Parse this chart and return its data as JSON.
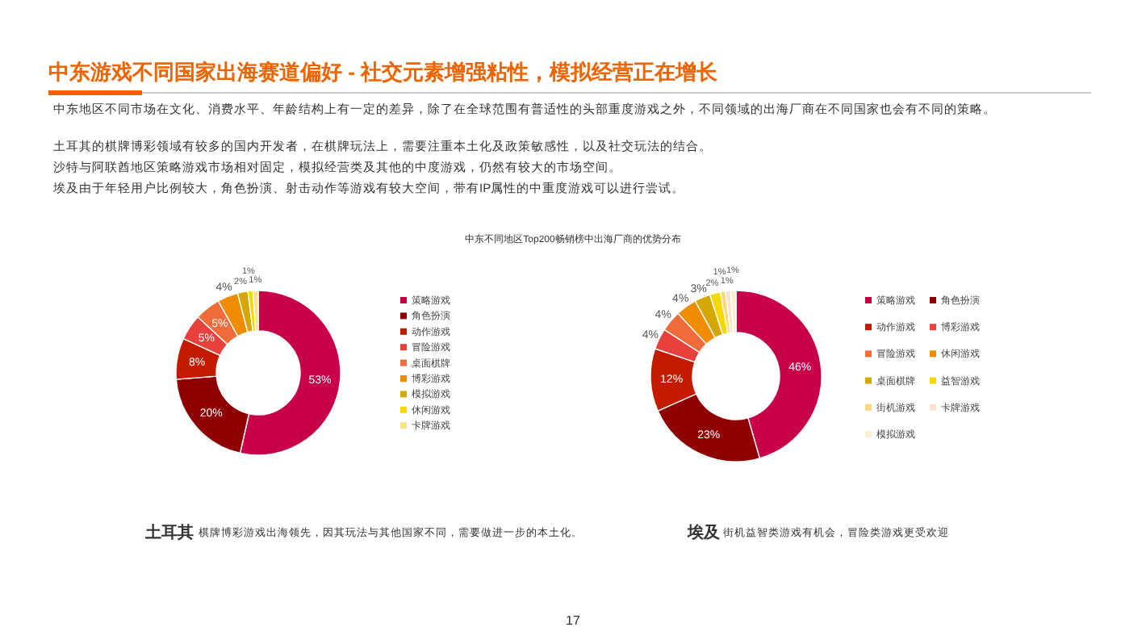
{
  "chart_data": [
    {
      "type": "donut",
      "title": "中东游戏不同国家出海赛道偏好 - 社交元素增强粘性，模拟经营正在增长",
      "subtitle": "中东不同地区Top200畅销榜中出海厂商的优势分布",
      "annotations": [
        "中东地区不同市场在文化、消费水平、年龄结构上有一定的差异，除了在全球范围有普适性的头部重度游戏之外，不同领域的出海厂商在不同国家也会有不同的策略。",
        "土耳其的棋牌博彩领域有较多的国内开发者，在棋牌玩法上，需要注重本土化及政策敏感性，以及社交玩法的结合。",
        "沙特与阿联酋地区策略游戏市场相对固定，模拟经营类及其他的中度游戏，仍然有较大的市场空间。",
        "埃及由于年轻用户比例较大，角色扮演、射击动作等游戏有较大空间，带有IP属性的中重度游戏可以进行尝试。",
        "土耳其",
        "棋牌博彩游戏出海领先，因其玩法与其他国家不同，需要做进一步的本土化。",
        "17"
      ],
      "categories": [
        "策略游戏",
        "角色扮演",
        "动作游戏",
        "冒险游戏",
        "桌面棋牌",
        "博彩游戏",
        "模拟游戏",
        "休闲游戏",
        "卡牌游戏"
      ],
      "values": [
        53,
        20,
        8,
        5,
        5,
        4,
        2,
        1,
        1
      ],
      "colors": [
        "#c8004a",
        "#900000",
        "#c41a00",
        "#e8403a",
        "#f06a3a",
        "#f08c00",
        "#d4a800",
        "#f5d800",
        "#fde08a"
      ],
      "value_labels": [
        "53%",
        "20%",
        "8%",
        "5%",
        "5%",
        "4%",
        "2%",
        "1%",
        "1%"
      ],
      "legend": "right"
    },
    {
      "type": "donut",
      "annotations": [
        "埃及",
        "街机益智类游戏有机会，冒险类游戏更受欢迎"
      ],
      "categories": [
        "策略游戏",
        "角色扮演",
        "动作游戏",
        "博彩游戏",
        "冒险游戏",
        "休闲游戏",
        "桌面棋牌",
        "益智游戏",
        "街机游戏",
        "卡牌游戏",
        "模拟游戏"
      ],
      "values": [
        46,
        23,
        12,
        4,
        4,
        4,
        3,
        2,
        1,
        1,
        1
      ],
      "colors": [
        "#c8004a",
        "#900000",
        "#c41a00",
        "#e8403a",
        "#f06a3a",
        "#f08c00",
        "#d4a800",
        "#f5d800",
        "#fcd878",
        "#fbe3cc",
        "#fdf0d0"
      ],
      "value_labels": [
        "46%",
        "23%",
        "12%",
        "4%",
        "4%",
        "4%",
        "3%",
        "2%",
        "1%",
        "1%",
        "1%"
      ],
      "legend": "right"
    }
  ]
}
